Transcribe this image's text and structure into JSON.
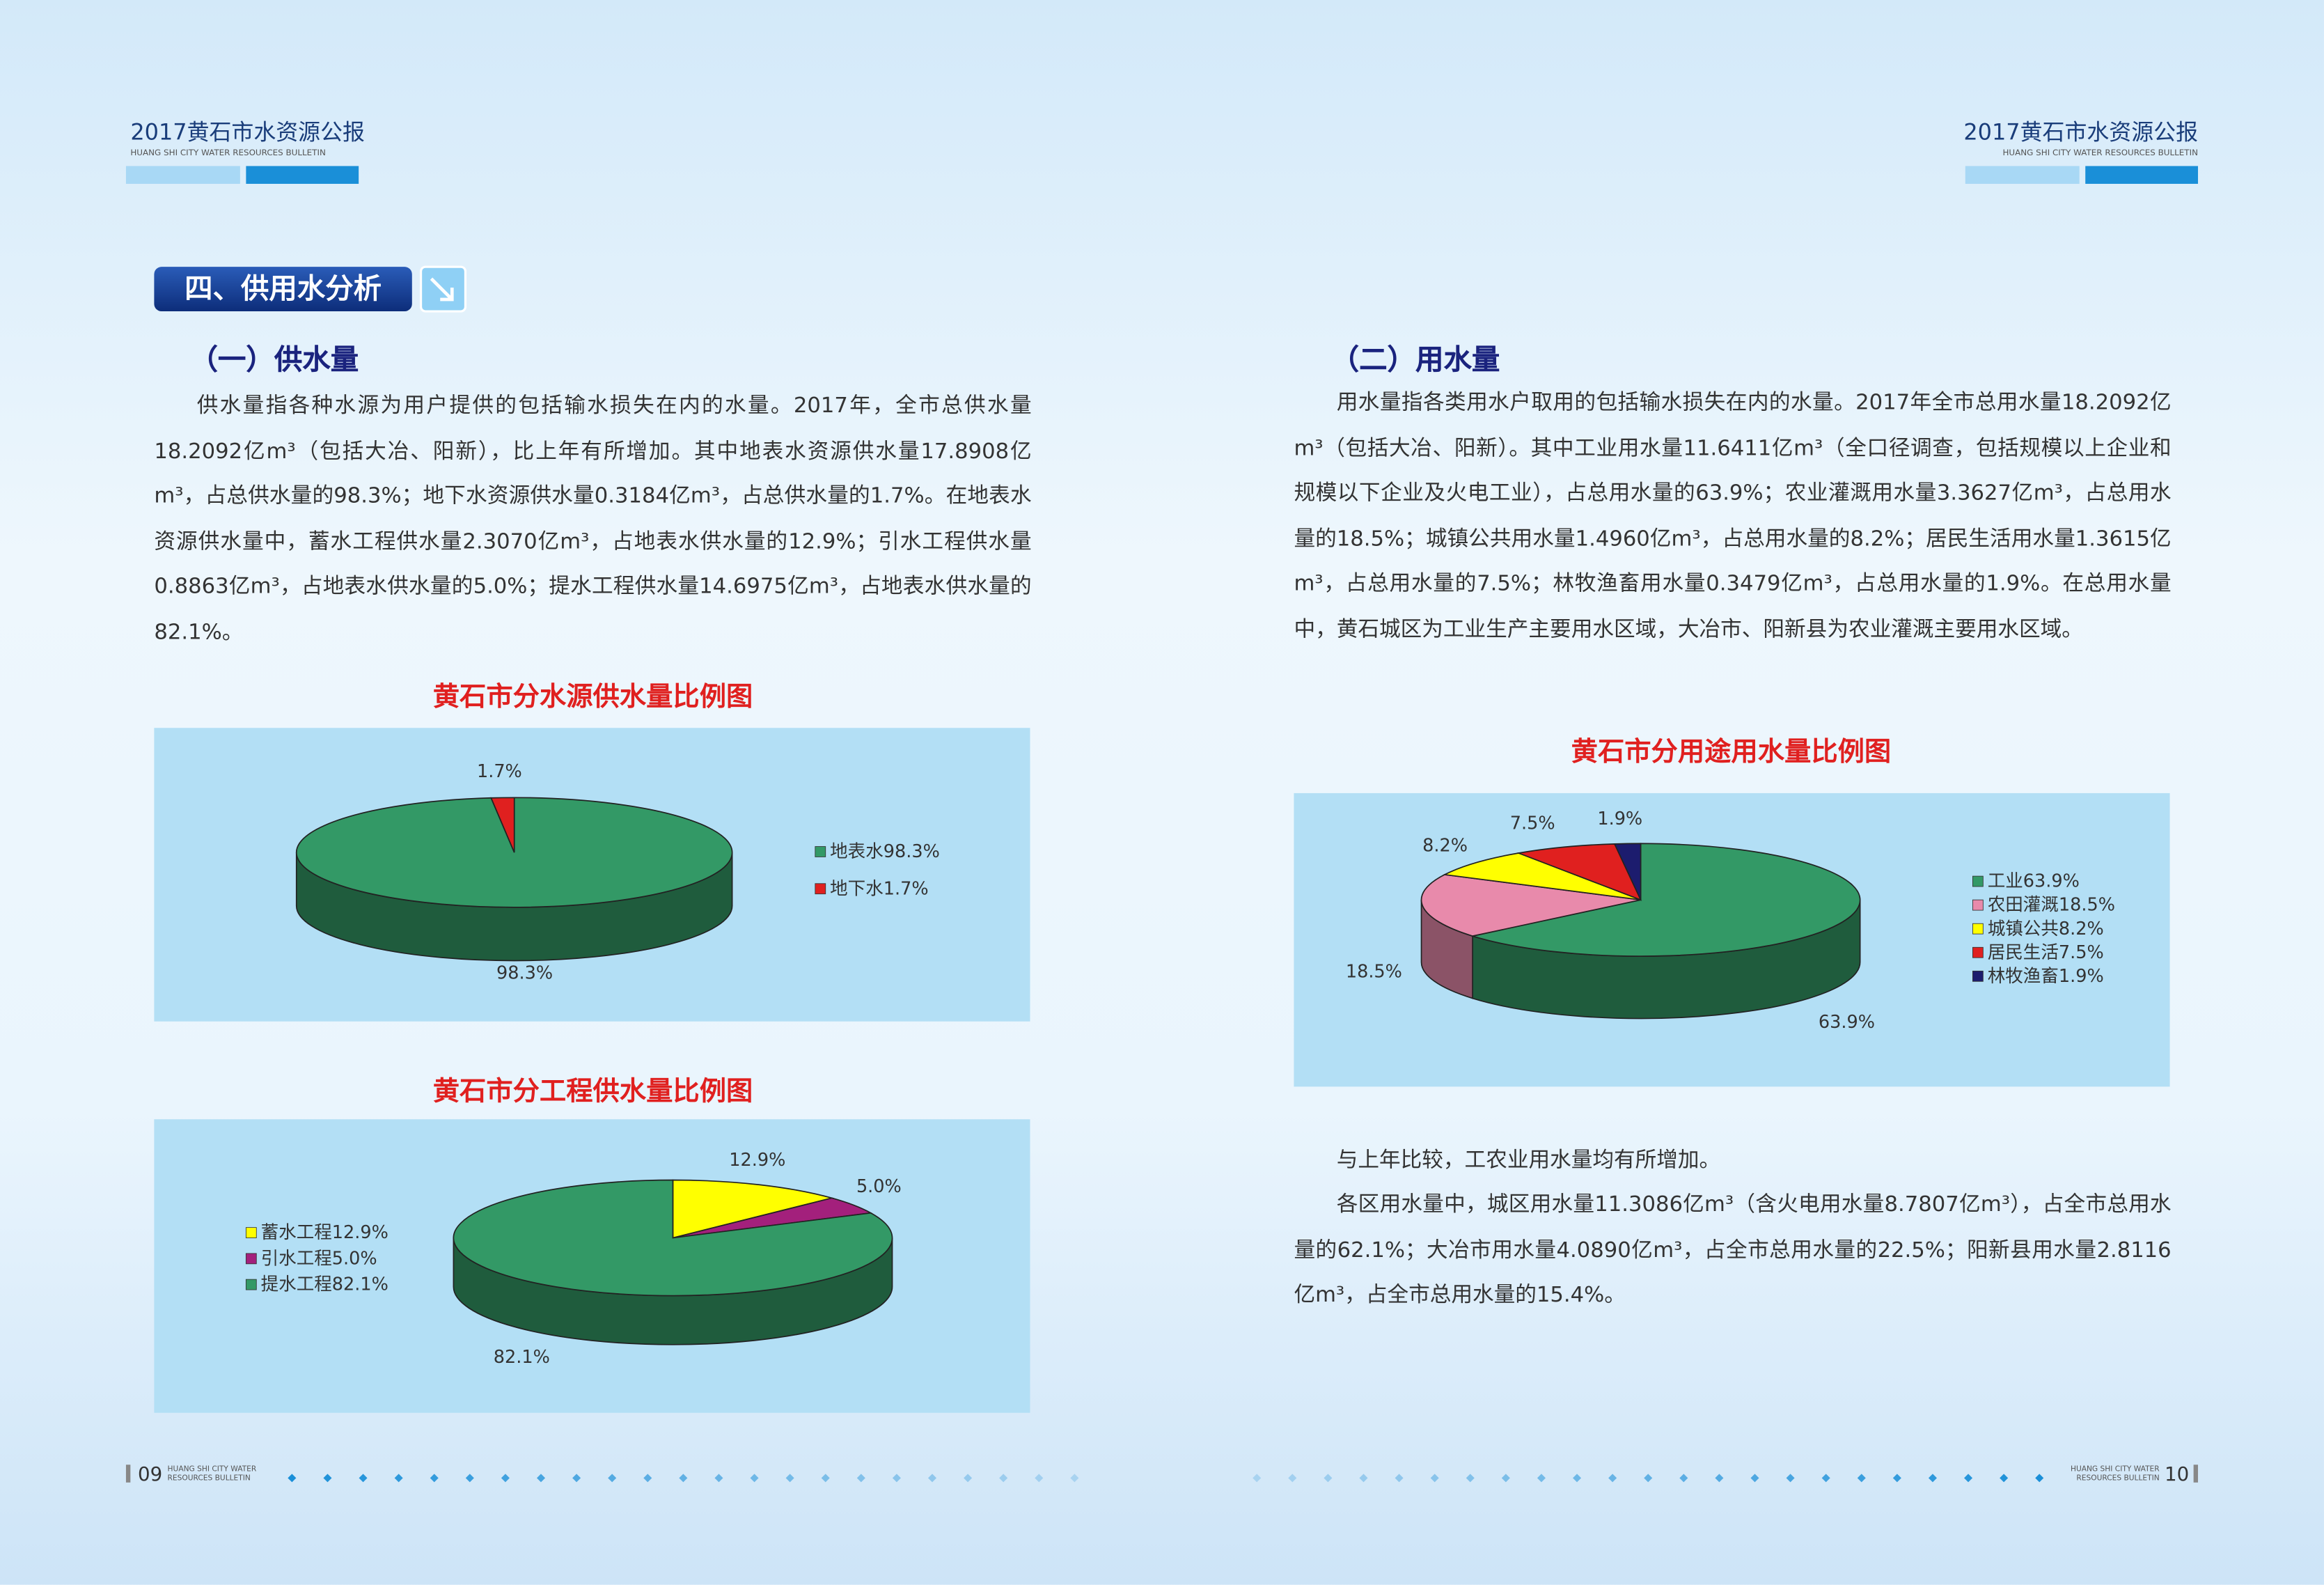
{
  "header": {
    "title": "2017黄石市水资源公报",
    "subtitle": "HUANG SHI CITY WATER RESOURCES BULLETIN"
  },
  "section": {
    "title": "四、供用水分析"
  },
  "left": {
    "subtitle": "（一）供水量",
    "paragraphs": [
      "供水量指各种水源为用户提供的包括输水损失在内的水量。2017年，全市总供水量18.2092亿m³（包括大冶、阳新），比上年有所增加。其中地表水资源供水量17.8908亿m³，占总供水量的98.3%；地下水资源供水量0.3184亿m³，占总供水量的1.7%。在地表水资源供水量中，蓄水工程供水量2.3070亿m³，占地表水供水量的12.9%；引水工程供水量0.8863亿m³，占地表水供水量的5.0%；提水工程供水量14.6975亿m³，占地表水供水量的82.1%。"
    ]
  },
  "right": {
    "subtitle": "（二）用水量",
    "paragraphs": [
      "用水量指各类用水户取用的包括输水损失在内的水量。2017年全市总用水量18.2092亿m³（包括大冶、阳新）。其中工业用水量11.6411亿m³（全口径调查，包括规模以上企业和规模以下企业及火电工业），占总用水量的63.9%；农业灌溉用水量3.3627亿m³，占总用水量的18.5%；城镇公共用水量1.4960亿m³，占总用水量的8.2%；居民生活用水量1.3615亿m³，占总用水量的7.5%；林牧渔畜用水量0.3479亿m³，占总用水量的1.9%。在总用水量中，黄石城区为工业生产主要用水区域，大冶市、阳新县为农业灌溉主要用水区域。",
      "与上年比较，工农业用水量均有所增加。",
      "各区用水量中，城区用水量11.3086亿m³（含火电用水量8.7807亿m³），占全市总用水量的62.1%；大冶市用水量4.0890亿m³，占全市总用水量的22.5%；阳新县用水量2.8116亿m³，占全市总用水量的15.4%。"
    ]
  },
  "chart_data": [
    {
      "type": "pie",
      "title": "黄石市分水源供水量比例图",
      "categories": [
        "地表水",
        "地下水"
      ],
      "values": [
        98.3,
        1.7
      ],
      "value_labels": [
        "98.3%",
        "1.7%"
      ],
      "colors": [
        "#339966",
        "#e0201f"
      ],
      "legend": "right"
    },
    {
      "type": "pie",
      "title": "黄石市分工程供水量比例图",
      "categories": [
        "蓄水工程",
        "引水工程",
        "提水工程"
      ],
      "values": [
        12.9,
        5.0,
        82.1
      ],
      "value_labels": [
        "12.9%",
        "5.0%",
        "82.1%"
      ],
      "colors": [
        "#ffff00",
        "#a3207c",
        "#339966"
      ],
      "legend": "left"
    },
    {
      "type": "pie",
      "title": "黄石市分用途用水量比例图",
      "categories": [
        "工业",
        "农田灌溉",
        "城镇公共",
        "居民生活",
        "林牧渔畜"
      ],
      "values": [
        63.9,
        18.5,
        8.2,
        7.5,
        1.9
      ],
      "value_labels": [
        "63.9%",
        "18.5%",
        "8.2%",
        "7.5%",
        "1.9%"
      ],
      "colors": [
        "#339966",
        "#e88aab",
        "#ffff00",
        "#e0201f",
        "#1c1c6e"
      ],
      "legend": "right"
    }
  ],
  "footer": {
    "left_page": "09",
    "right_page": "10",
    "bulletin": [
      "HUANG SHI CITY WATER",
      "RESOURCES BULLETIN"
    ]
  }
}
